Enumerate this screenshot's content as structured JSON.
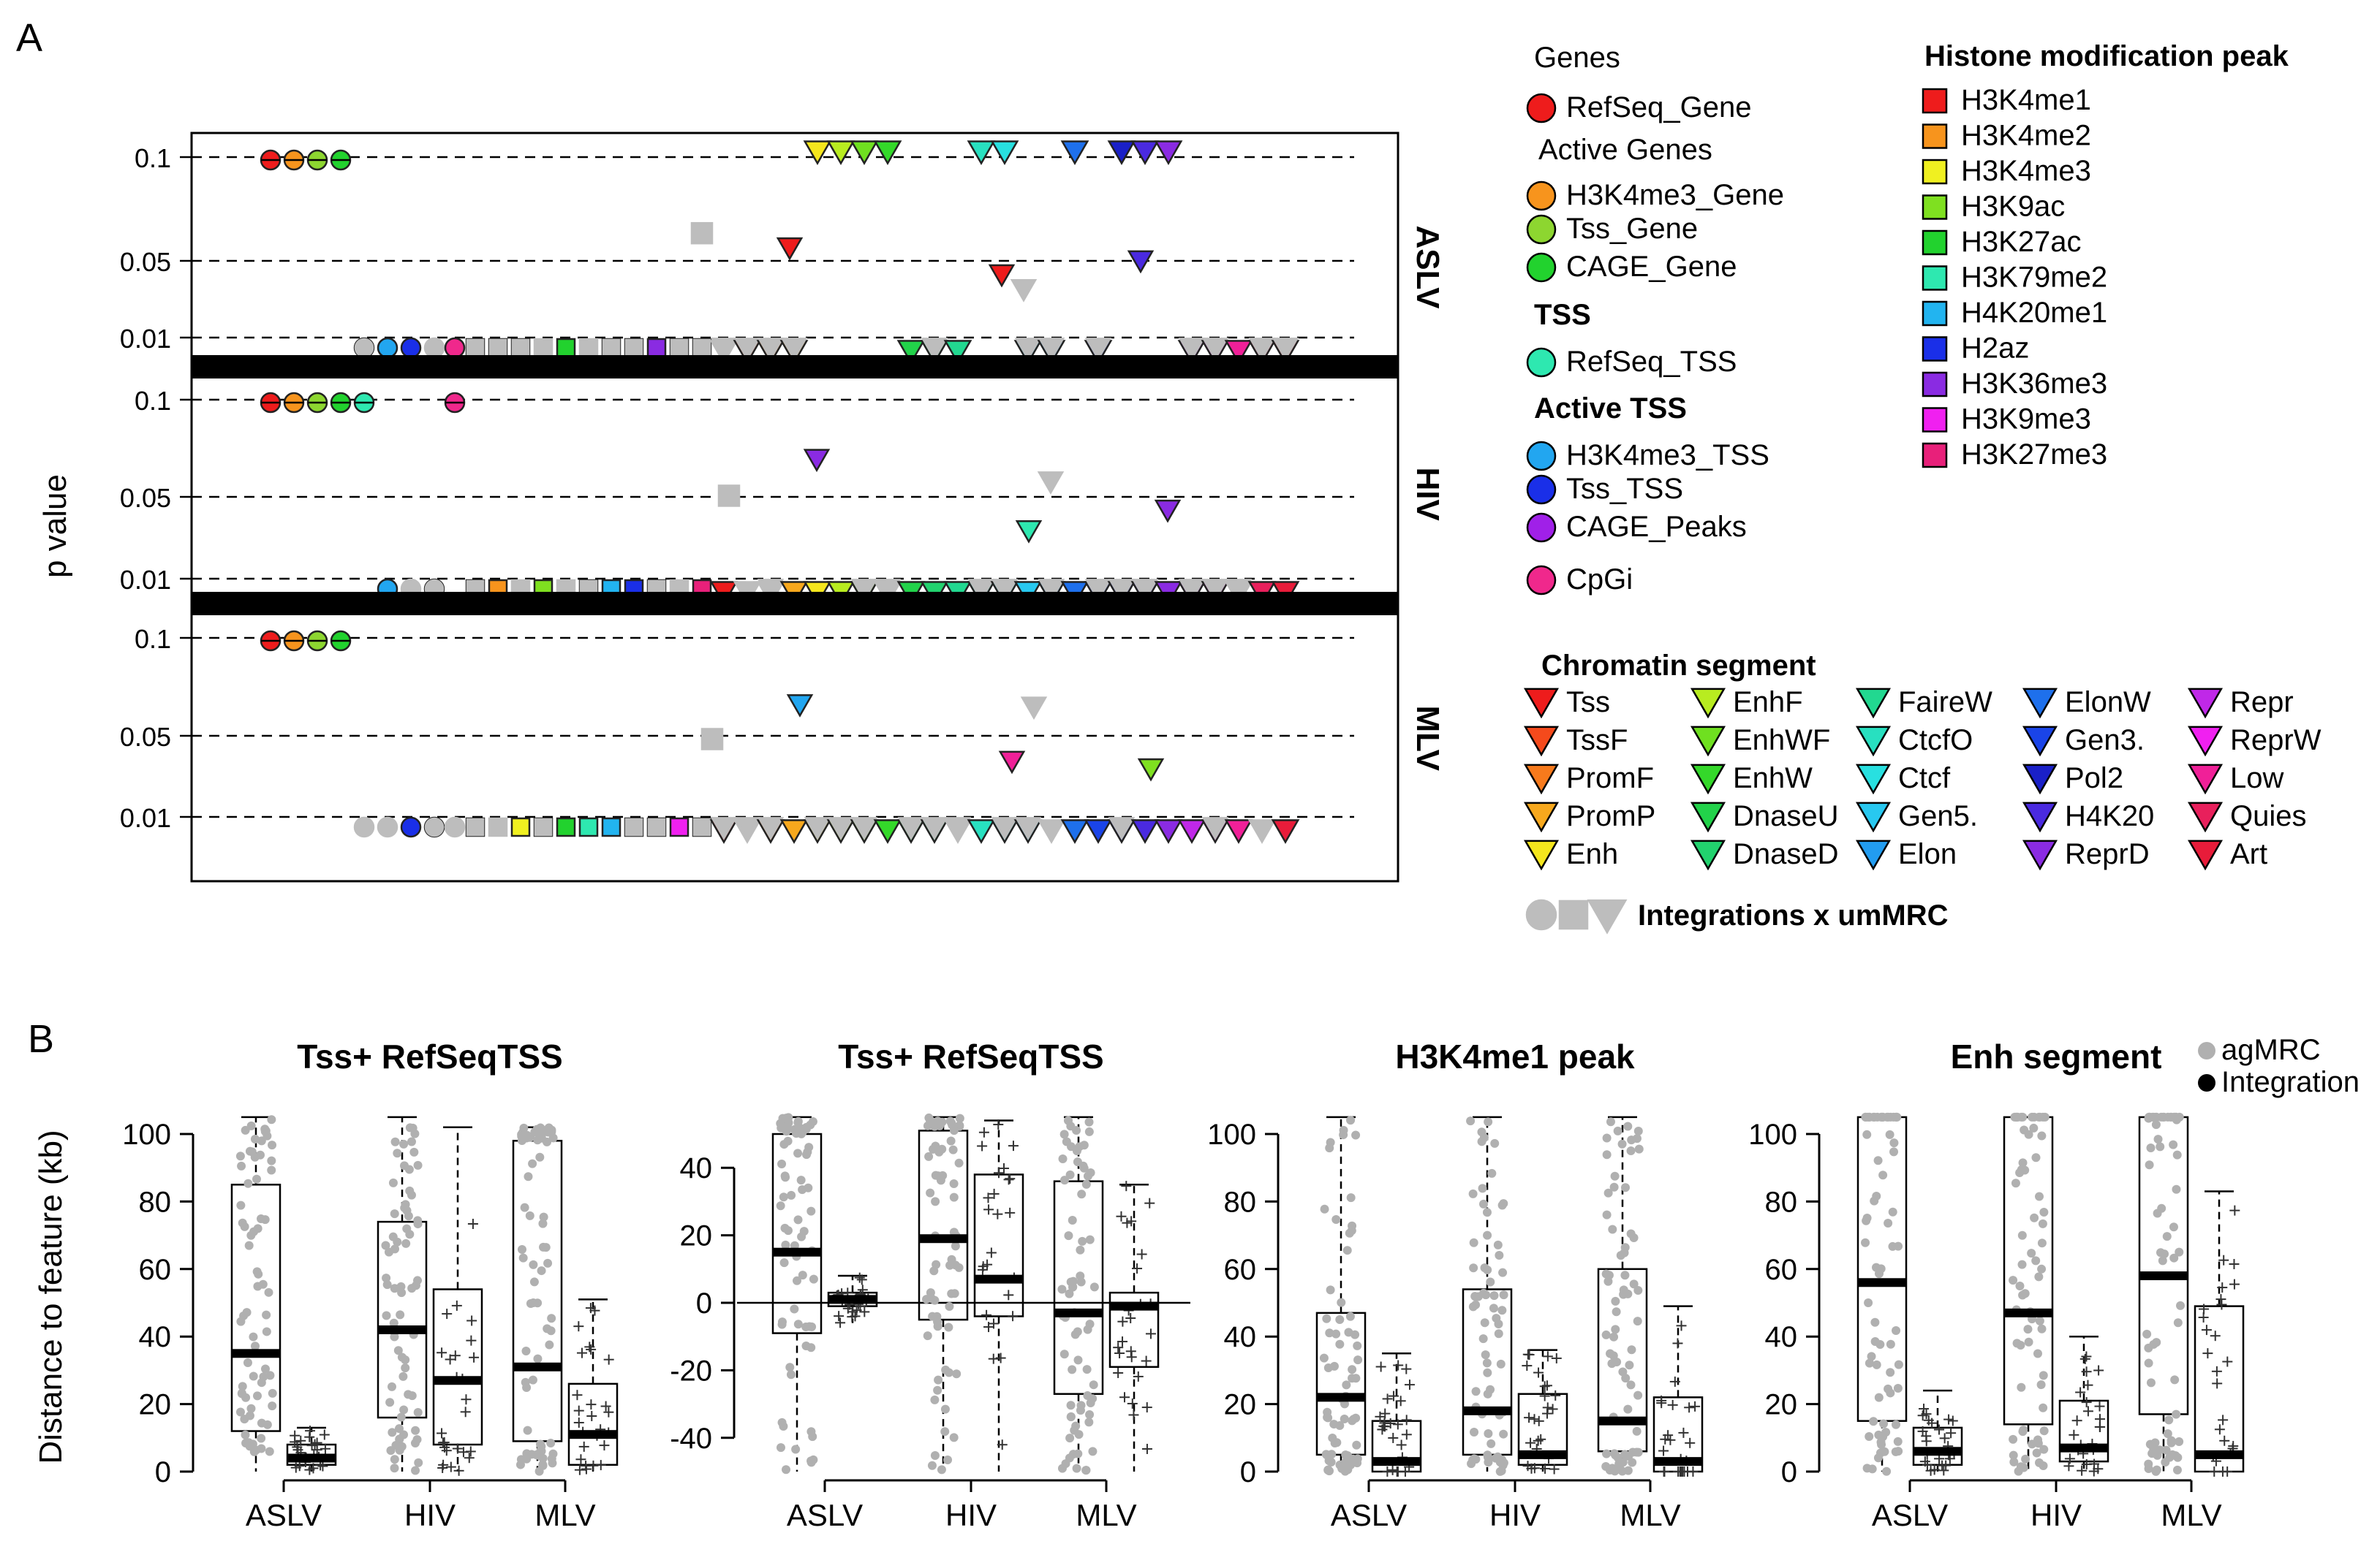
{
  "panel_labels": {
    "a": "A",
    "b": "B"
  },
  "panel_a": {
    "ylabel": "p value",
    "yticks": [
      "0.1",
      "0.05",
      "0.01"
    ],
    "rows": [
      {
        "name": "ASLV"
      },
      {
        "name": "HIV"
      },
      {
        "name": "MLV"
      }
    ]
  },
  "legend": {
    "genes_title": "Genes",
    "genes": [
      {
        "label": "RefSeq_Gene",
        "color": "#ee1c1c",
        "shape": "circle"
      }
    ],
    "active_genes_title": "Active Genes",
    "active_genes": [
      {
        "label": "H3K4me3_Gene",
        "color": "#f7941d",
        "shape": "circle"
      },
      {
        "label": "Tss_Gene",
        "color": "#8dd630",
        "shape": "circle"
      },
      {
        "label": "CAGE_Gene",
        "color": "#22d22e",
        "shape": "circle"
      }
    ],
    "tss_title": "TSS",
    "tss": [
      {
        "label": "RefSeq_TSS",
        "color": "#2ee8b0",
        "shape": "circle"
      }
    ],
    "active_tss_title": "Active TSS",
    "active_tss": [
      {
        "label": "H3K4me3_TSS",
        "color": "#22a6f0",
        "shape": "circle"
      },
      {
        "label": "Tss_TSS",
        "color": "#1a2fe8",
        "shape": "circle"
      },
      {
        "label": "CAGE_Peaks",
        "color": "#a020e8",
        "shape": "circle"
      }
    ],
    "cpgi": [
      {
        "label": "CpGi",
        "color": "#f0288c",
        "shape": "circle"
      }
    ],
    "histone_title": "Histone modification peak",
    "histone": [
      {
        "label": "H3K4me1",
        "color": "#ee1c1c"
      },
      {
        "label": "H3K4me2",
        "color": "#f7941d"
      },
      {
        "label": "H3K4me3",
        "color": "#f0f020"
      },
      {
        "label": "H3K9ac",
        "color": "#7fe020"
      },
      {
        "label": "H3K27ac",
        "color": "#22d22e"
      },
      {
        "label": "H3K79me2",
        "color": "#2ee8b0"
      },
      {
        "label": "H4K20me1",
        "color": "#22b4f0"
      },
      {
        "label": "H2az",
        "color": "#1a2fe8"
      },
      {
        "label": "H3K36me3",
        "color": "#8a2be2"
      },
      {
        "label": "H3K9me3",
        "color": "#f020f0"
      },
      {
        "label": "H3K27me3",
        "color": "#e8207a"
      }
    ],
    "chromatin_title": "Chromatin segment",
    "chromatin": [
      [
        "Tss",
        "#ee1c1c"
      ],
      [
        "TssF",
        "#f54a1c"
      ],
      [
        "PromF",
        "#f77a1c"
      ],
      [
        "PromP",
        "#f7a81d"
      ],
      [
        "Enh",
        "#f5e61d"
      ],
      [
        "EnhF",
        "#b8ec20"
      ],
      [
        "EnhWF",
        "#6fe020"
      ],
      [
        "EnhW",
        "#34d82a"
      ],
      [
        "DnaseU",
        "#22d24a"
      ],
      [
        "DnaseD",
        "#22d26e"
      ],
      [
        "FaireW",
        "#22d890"
      ],
      [
        "CtcfO",
        "#28e0c0"
      ],
      [
        "Ctcf",
        "#28e0e0"
      ],
      [
        "Gen5.",
        "#28c8f0"
      ],
      [
        "Elon",
        "#229cf0"
      ],
      [
        "ElonW",
        "#1e70ec"
      ],
      [
        "Gen3.",
        "#1a44e8"
      ],
      [
        "Pol2",
        "#1a20c8"
      ],
      [
        "H4K20",
        "#4a2ae0"
      ],
      [
        "ReprD",
        "#8a2be2"
      ],
      [
        "Repr",
        "#c028e8"
      ],
      [
        "ReprW",
        "#f020f0"
      ],
      [
        "Low",
        "#f02098"
      ],
      [
        "Quies",
        "#e8205c"
      ],
      [
        "Art",
        "#e81c3a"
      ]
    ],
    "integrations_label": "Integrations x umMRC"
  },
  "panel_b_legend": {
    "agmrc": "agMRC",
    "integration": "Integration",
    "agmrc_color": "#b0b0b0",
    "integration_color": "#000000"
  },
  "chart_data": [
    {
      "type": "box",
      "title": "Tss+ RefSeqTSS",
      "ylabel": "Distance to feature (kb)",
      "categories": [
        "ASLV",
        "HIV",
        "MLV"
      ],
      "ylim": [
        0,
        100
      ],
      "yticks": [
        0,
        20,
        40,
        60,
        80,
        100
      ],
      "boxes": [
        {
          "group": "ASLV",
          "kind": "agMRC",
          "q1": 12,
          "median": 35,
          "q3": 85,
          "wlo": 0,
          "whi": 105
        },
        {
          "group": "ASLV",
          "kind": "Integration",
          "q1": 2,
          "median": 4,
          "q3": 8,
          "wlo": 0,
          "whi": 13
        },
        {
          "group": "HIV",
          "kind": "agMRC",
          "q1": 16,
          "median": 42,
          "q3": 74,
          "wlo": 0,
          "whi": 105
        },
        {
          "group": "HIV",
          "kind": "Integration",
          "q1": 8,
          "median": 27,
          "q3": 54,
          "wlo": 0,
          "whi": 102
        },
        {
          "group": "MLV",
          "kind": "agMRC",
          "q1": 9,
          "median": 31,
          "q3": 98,
          "wlo": 0,
          "whi": 102
        },
        {
          "group": "MLV",
          "kind": "Integration",
          "q1": 2,
          "median": 11,
          "q3": 26,
          "wlo": 0,
          "whi": 51
        }
      ]
    },
    {
      "type": "box",
      "title": "Tss+ RefSeqTSS",
      "ylabel": "",
      "categories": [
        "ASLV",
        "HIV",
        "MLV"
      ],
      "ylim": [
        -50,
        50
      ],
      "yticks": [
        -40,
        -20,
        0,
        20,
        40
      ],
      "zero_line": true,
      "boxes": [
        {
          "group": "ASLV",
          "kind": "agMRC",
          "q1": -9,
          "median": 15,
          "q3": 50,
          "wlo": -50,
          "whi": 55
        },
        {
          "group": "ASLV",
          "kind": "Integration",
          "q1": -1,
          "median": 1,
          "q3": 3,
          "wlo": -6,
          "whi": 8
        },
        {
          "group": "HIV",
          "kind": "agMRC",
          "q1": -5,
          "median": 19,
          "q3": 51,
          "wlo": -50,
          "whi": 55
        },
        {
          "group": "HIV",
          "kind": "Integration",
          "q1": -4,
          "median": 7,
          "q3": 38,
          "wlo": -50,
          "whi": 54
        },
        {
          "group": "MLV",
          "kind": "agMRC",
          "q1": -27,
          "median": -3,
          "q3": 36,
          "wlo": -50,
          "whi": 55
        },
        {
          "group": "MLV",
          "kind": "Integration",
          "q1": -19,
          "median": -1,
          "q3": 3,
          "wlo": -50,
          "whi": 35
        }
      ]
    },
    {
      "type": "box",
      "title": "H3K4me1 peak",
      "ylabel": "",
      "categories": [
        "ASLV",
        "HIV",
        "MLV"
      ],
      "ylim": [
        0,
        100
      ],
      "yticks": [
        0,
        20,
        40,
        60,
        80,
        100
      ],
      "boxes": [
        {
          "group": "ASLV",
          "kind": "agMRC",
          "q1": 5,
          "median": 22,
          "q3": 47,
          "wlo": 0,
          "whi": 105
        },
        {
          "group": "ASLV",
          "kind": "Integration",
          "q1": 0,
          "median": 3,
          "q3": 15,
          "wlo": 0,
          "whi": 35
        },
        {
          "group": "HIV",
          "kind": "agMRC",
          "q1": 5,
          "median": 18,
          "q3": 54,
          "wlo": 0,
          "whi": 105
        },
        {
          "group": "HIV",
          "kind": "Integration",
          "q1": 2,
          "median": 5,
          "q3": 23,
          "wlo": 0,
          "whi": 36
        },
        {
          "group": "MLV",
          "kind": "agMRC",
          "q1": 6,
          "median": 15,
          "q3": 60,
          "wlo": 0,
          "whi": 105
        },
        {
          "group": "MLV",
          "kind": "Integration",
          "q1": 0,
          "median": 3,
          "q3": 22,
          "wlo": 0,
          "whi": 49
        }
      ]
    },
    {
      "type": "box",
      "title": "Enh segment",
      "ylabel": "",
      "categories": [
        "ASLV",
        "HIV",
        "MLV"
      ],
      "ylim": [
        0,
        100
      ],
      "yticks": [
        0,
        20,
        40,
        60,
        80,
        100
      ],
      "boxes": [
        {
          "group": "ASLV",
          "kind": "agMRC",
          "q1": 15,
          "median": 56,
          "q3": 105,
          "wlo": 0,
          "whi": 105
        },
        {
          "group": "ASLV",
          "kind": "Integration",
          "q1": 2,
          "median": 6,
          "q3": 13,
          "wlo": 0,
          "whi": 24
        },
        {
          "group": "HIV",
          "kind": "agMRC",
          "q1": 14,
          "median": 47,
          "q3": 105,
          "wlo": 0,
          "whi": 105
        },
        {
          "group": "HIV",
          "kind": "Integration",
          "q1": 3,
          "median": 7,
          "q3": 21,
          "wlo": 0,
          "whi": 40
        },
        {
          "group": "MLV",
          "kind": "agMRC",
          "q1": 17,
          "median": 58,
          "q3": 105,
          "wlo": 0,
          "whi": 105
        },
        {
          "group": "MLV",
          "kind": "Integration",
          "q1": 0,
          "median": 5,
          "q3": 49,
          "wlo": 0,
          "whi": 83
        }
      ]
    }
  ]
}
